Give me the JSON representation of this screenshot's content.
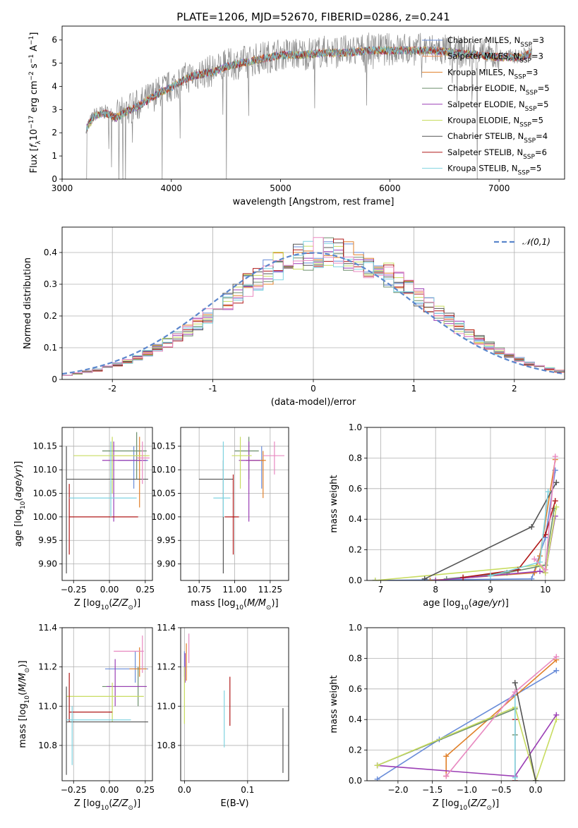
{
  "figure": {
    "title": "PLATE=1206, MJD=52670, FIBERID=0286, z=0.241"
  },
  "colors": {
    "blue": "#6a8dd9",
    "orange": "#e0802a",
    "salmon": "#e8854f",
    "green": "#6b8e6b",
    "purple": "#9b3fb5",
    "lime": "#c8dc60",
    "dark": "#555555",
    "red": "#b01818",
    "cyan": "#7fd3e0",
    "pink": "#e889c0",
    "gray": "#888888",
    "olive": "#9cbf2f"
  },
  "chart_data": [
    {
      "id": "spectrum",
      "type": "line",
      "title": "PLATE=1206, MJD=52670, FIBERID=0286, z=0.241",
      "xlabel": "wavelength [Angstrom, rest frame]",
      "ylabel": "Flux [f_λ 10^-17 erg cm^-2 s^-1 A^-1]",
      "xlim": [
        3000,
        7600
      ],
      "ylim": [
        0,
        6.6
      ],
      "xticks": [
        3000,
        4000,
        5000,
        6000,
        7000
      ],
      "yticks": [
        0,
        1,
        2,
        3,
        4,
        5,
        6
      ],
      "data_color": "#888888",
      "data_x": [
        3220,
        3300,
        3400,
        3500,
        3600,
        3700,
        3800,
        3900,
        4000,
        4100,
        4200,
        4300,
        4400,
        4500,
        4600,
        4700,
        4800,
        4900,
        5000,
        5200,
        5400,
        5600,
        5800,
        6000,
        6200,
        6400,
        6600,
        6800,
        7000,
        7200,
        7300
      ],
      "data_y": [
        2.2,
        2.8,
        2.9,
        2.7,
        3.0,
        3.2,
        3.5,
        3.8,
        4.0,
        4.3,
        4.5,
        4.6,
        4.7,
        4.9,
        5.0,
        5.1,
        5.2,
        5.3,
        5.4,
        5.4,
        5.5,
        5.5,
        5.6,
        5.6,
        5.6,
        5.6,
        5.5,
        5.4,
        5.3,
        5.3,
        5.5
      ],
      "legend_position": "upper-right",
      "series": [
        {
          "name": "Chabrier MILES, N",
          "sub": "SSP",
          "suffix": "=3",
          "color": "#6a8dd9"
        },
        {
          "name": "Salpeter MILES, N",
          "sub": "SSP",
          "suffix": "=3",
          "color": "#e8854f"
        },
        {
          "name": "Kroupa MILES, N",
          "sub": "SSP",
          "suffix": "=3",
          "color": "#e0802a"
        },
        {
          "name": "Chabrier ELODIE, N",
          "sub": "SSP",
          "suffix": "=5",
          "color": "#6b8e6b"
        },
        {
          "name": "Salpeter ELODIE, N",
          "sub": "SSP",
          "suffix": "=5",
          "color": "#9b3fb5"
        },
        {
          "name": "Kroupa ELODIE, N",
          "sub": "SSP",
          "suffix": "=5",
          "color": "#c8dc60"
        },
        {
          "name": "Chabrier STELIB, N",
          "sub": "SSP",
          "suffix": "=4",
          "color": "#555555"
        },
        {
          "name": "Salpeter STELIB, N",
          "sub": "SSP",
          "suffix": "=6",
          "color": "#b01818"
        },
        {
          "name": "Kroupa STELIB, N",
          "sub": "SSP",
          "suffix": "=5",
          "color": "#7fd3e0"
        }
      ]
    },
    {
      "id": "residuals",
      "type": "histogram",
      "xlabel": "(data-model)/error",
      "ylabel": "Normed distribution",
      "xlim": [
        -2.5,
        2.5
      ],
      "ylim": [
        0,
        0.48
      ],
      "xticks": [
        -2,
        -1,
        0,
        1,
        2
      ],
      "yticks": [
        0.0,
        0.1,
        0.2,
        0.3,
        0.4
      ],
      "grid": true,
      "reference": {
        "name": "𝒩(0,1)",
        "color": "#5b86cc",
        "mean": 0,
        "sigma": 1
      },
      "bin_width": 0.1,
      "series_colors": [
        "#6a8dd9",
        "#e0802a",
        "#6b8e6b",
        "#9b3fb5",
        "#c8dc60",
        "#555555",
        "#b01818",
        "#7fd3e0",
        "#e889c0"
      ]
    },
    {
      "id": "age_vs_Z",
      "type": "errorbar",
      "xlabel": "Z [log10(Z/Z⊙)]",
      "ylabel": "age [log10(age/yr)]",
      "xlim": [
        -0.33,
        0.3
      ],
      "ylim": [
        9.865,
        10.19
      ],
      "xticks": [
        -0.25,
        0.0,
        0.25
      ],
      "xticklabels": [
        "−0.25",
        "0.00",
        "0.25"
      ],
      "yticks": [
        9.9,
        9.95,
        10.0,
        10.05,
        10.1,
        10.15
      ],
      "yticklabels": [
        "9.90",
        "9.95",
        "10.00",
        "10.05",
        "10.10",
        "10.15"
      ],
      "points": [
        {
          "x": 0.17,
          "y": 10.12,
          "xl": 0.06,
          "xh": 0.27,
          "yl": 10.06,
          "yh": 10.15,
          "color": "#6a8dd9"
        },
        {
          "x": 0.21,
          "y": 10.13,
          "xl": 0.02,
          "xh": 0.27,
          "yl": 10.02,
          "yh": 10.17,
          "color": "#e0802a"
        },
        {
          "x": 0.19,
          "y": 10.14,
          "xl": -0.05,
          "xh": 0.26,
          "yl": 10.08,
          "yh": 10.18,
          "color": "#6b8e6b"
        },
        {
          "x": 0.03,
          "y": 10.12,
          "xl": -0.05,
          "xh": 0.26,
          "yl": 9.99,
          "yh": 10.16,
          "color": "#9b3fb5"
        },
        {
          "x": 0.02,
          "y": 10.13,
          "xl": -0.25,
          "xh": 0.28,
          "yl": 10.05,
          "yh": 10.17,
          "color": "#c8dc60"
        },
        {
          "x": -0.3,
          "y": 10.08,
          "xl": -0.3,
          "xh": 0.27,
          "yl": 9.88,
          "yh": 10.15,
          "color": "#555555"
        },
        {
          "x": -0.28,
          "y": 10.0,
          "xl": -0.28,
          "xh": 0.2,
          "yl": 9.92,
          "yh": 10.07,
          "color": "#b01818"
        },
        {
          "x": 0.01,
          "y": 10.04,
          "xl": -0.28,
          "xh": 0.19,
          "yl": 10.0,
          "yh": 10.16,
          "color": "#7fd3e0"
        },
        {
          "x": 0.23,
          "y": 10.125,
          "xl": 0.19,
          "xh": 0.28,
          "yl": 10.07,
          "yh": 10.16,
          "color": "#e889c0"
        }
      ]
    },
    {
      "id": "age_vs_mass",
      "type": "errorbar",
      "xlabel": "mass [log10(M/M⊙)]",
      "ylabel": "",
      "xlim": [
        10.62,
        11.38
      ],
      "ylim": [
        9.865,
        10.19
      ],
      "xticks": [
        10.75,
        11.0,
        11.25
      ],
      "xticklabels": [
        "10.75",
        "11.00",
        "11.25"
      ],
      "yticks": [
        9.9,
        9.95,
        10.0,
        10.05,
        10.1,
        10.15
      ],
      "yticklabels": [
        "9.90",
        "9.95",
        "10.00",
        "10.05",
        "10.10",
        "10.15"
      ],
      "points": [
        {
          "x": 11.19,
          "y": 10.12,
          "xl": 11.08,
          "xh": 11.2,
          "yl": 10.06,
          "yh": 10.15,
          "color": "#6a8dd9"
        },
        {
          "x": 11.2,
          "y": 10.12,
          "xl": 11.08,
          "xh": 11.22,
          "yl": 10.04,
          "yh": 10.14,
          "color": "#e0802a"
        },
        {
          "x": 11.1,
          "y": 10.14,
          "xl": 11.0,
          "xh": 11.17,
          "yl": 10.08,
          "yh": 10.17,
          "color": "#6b8e6b"
        },
        {
          "x": 11.1,
          "y": 10.12,
          "xl": 11.03,
          "xh": 11.18,
          "yl": 9.99,
          "yh": 10.16,
          "color": "#9b3fb5"
        },
        {
          "x": 11.04,
          "y": 10.13,
          "xl": 10.98,
          "xh": 11.12,
          "yl": 10.06,
          "yh": 10.17,
          "color": "#c8dc60"
        },
        {
          "x": 10.92,
          "y": 10.08,
          "xl": 10.75,
          "xh": 10.99,
          "yl": 9.88,
          "yh": 10.12,
          "color": "#555555"
        },
        {
          "x": 10.99,
          "y": 10.0,
          "xl": 10.93,
          "xh": 11.03,
          "yl": 9.92,
          "yh": 10.09,
          "color": "#b01818"
        },
        {
          "x": 10.92,
          "y": 10.04,
          "xl": 10.85,
          "xh": 10.97,
          "yl": 10.0,
          "yh": 10.16,
          "color": "#7fd3e0"
        },
        {
          "x": 11.28,
          "y": 10.13,
          "xl": 11.2,
          "xh": 11.35,
          "yl": 10.09,
          "yh": 10.16,
          "color": "#e889c0"
        }
      ]
    },
    {
      "id": "massweight_vs_age",
      "type": "line",
      "xlabel": "age [log10(age/yr)]",
      "ylabel": "mass weight",
      "xlim": [
        6.75,
        10.35
      ],
      "ylim": [
        0,
        1
      ],
      "xticks": [
        7,
        8,
        9,
        10
      ],
      "yticks": [
        0,
        0.2,
        0.4,
        0.6,
        0.8,
        1.0
      ],
      "yticklabels": [
        "0.0",
        "0.2",
        "0.4",
        "0.6",
        "0.8",
        "1.0"
      ],
      "grid": true,
      "series": [
        {
          "color": "#6a8dd9",
          "x": [
            6.9,
            9.75,
            10.0,
            10.18
          ],
          "y": [
            0.0,
            0.01,
            0.28,
            0.72
          ]
        },
        {
          "color": "#e0802a",
          "x": [
            7.9,
            9.8,
            9.9,
            10.18
          ],
          "y": [
            0.0,
            0.05,
            0.16,
            0.79
          ]
        },
        {
          "color": "#6b8e6b",
          "x": [
            8.2,
            9.3,
            10.0,
            10.16
          ],
          "y": [
            0.01,
            0.05,
            0.1,
            0.47
          ]
        },
        {
          "color": "#9b3fb5",
          "x": [
            8.0,
            9.9,
            10.0,
            10.18
          ],
          "y": [
            0.0,
            0.06,
            0.05,
            0.42
          ]
        },
        {
          "color": "#c8dc60",
          "x": [
            6.9,
            9.9,
            10.0,
            10.2
          ],
          "y": [
            0.0,
            0.1,
            0.05,
            0.48
          ]
        },
        {
          "color": "#555555",
          "x": [
            7.8,
            9.75,
            10.2
          ],
          "y": [
            0.01,
            0.35,
            0.64
          ]
        },
        {
          "color": "#b01818",
          "x": [
            8.5,
            9.5,
            10.0,
            10.18
          ],
          "y": [
            0.02,
            0.07,
            0.3,
            0.52
          ]
        },
        {
          "color": "#7fd3e0",
          "x": [
            9.0,
            9.9,
            10.05
          ],
          "y": [
            0.03,
            0.12,
            0.58
          ]
        },
        {
          "color": "#e889c0",
          "x": [
            9.8,
            10.0,
            10.18
          ],
          "y": [
            0.14,
            0.07,
            0.81
          ]
        }
      ]
    },
    {
      "id": "mass_vs_Z",
      "type": "errorbar",
      "xlabel": "Z [log10(Z/Z⊙)]",
      "ylabel": "mass [log10(M/M⊙)]",
      "xlim": [
        -0.33,
        0.3
      ],
      "ylim": [
        10.62,
        11.4
      ],
      "xticks": [
        -0.25,
        0.0,
        0.25
      ],
      "xticklabels": [
        "−0.25",
        "0.00",
        "0.25"
      ],
      "yticks": [
        10.8,
        11.0,
        11.2,
        11.4
      ],
      "yticklabels": [
        "10.8",
        "11.0",
        "11.2",
        "11.4"
      ],
      "points": [
        {
          "x": 0.18,
          "y": 11.19,
          "xl": -0.03,
          "xh": 0.27,
          "yl": 11.12,
          "yh": 11.28,
          "color": "#6a8dd9"
        },
        {
          "x": 0.21,
          "y": 11.19,
          "xl": 0.14,
          "xh": 0.26,
          "yl": 11.15,
          "yh": 11.3,
          "color": "#e0802a"
        },
        {
          "x": 0.2,
          "y": 11.1,
          "xl": -0.05,
          "xh": 0.26,
          "yl": 11.0,
          "yh": 11.2,
          "color": "#6b8e6b"
        },
        {
          "x": 0.04,
          "y": 11.1,
          "xl": -0.02,
          "xh": 0.26,
          "yl": 11.0,
          "yh": 11.24,
          "color": "#9b3fb5"
        },
        {
          "x": 0.02,
          "y": 11.05,
          "xl": -0.3,
          "xh": 0.24,
          "yl": 10.92,
          "yh": 11.12,
          "color": "#c8dc60"
        },
        {
          "x": -0.3,
          "y": 10.92,
          "xl": -0.3,
          "xh": 0.27,
          "yl": 10.65,
          "yh": 11.1,
          "color": "#555555"
        },
        {
          "x": -0.28,
          "y": 10.97,
          "xl": -0.28,
          "xh": 0.02,
          "yl": 10.92,
          "yh": 11.17,
          "color": "#b01818"
        },
        {
          "x": -0.26,
          "y": 10.93,
          "xl": -0.3,
          "xh": 0.15,
          "yl": 10.7,
          "yh": 11.0,
          "color": "#7fd3e0"
        },
        {
          "x": 0.23,
          "y": 11.28,
          "xl": 0.03,
          "xh": 0.24,
          "yl": 11.17,
          "yh": 11.36,
          "color": "#e889c0"
        }
      ]
    },
    {
      "id": "mass_vs_EBV",
      "type": "errorbar",
      "xlabel": "E(B-V)",
      "ylabel": "",
      "xlim": [
        -0.006,
        0.165
      ],
      "ylim": [
        10.62,
        11.4
      ],
      "xticks": [
        0.0,
        0.1
      ],
      "xticklabels": [
        "0.0",
        "0.1"
      ],
      "yticks": [
        10.8,
        11.0,
        11.2,
        11.4
      ],
      "yticklabels": [
        "10.8",
        "11.0",
        "11.2",
        "11.4"
      ],
      "points": [
        {
          "x": 0.0,
          "y": 11.23,
          "yl": 11.15,
          "yh": 11.28,
          "color": "#6a8dd9"
        },
        {
          "x": 0.003,
          "y": 11.23,
          "yl": 11.13,
          "yh": 11.32,
          "color": "#e0802a"
        },
        {
          "x": 0.001,
          "y": 11.2,
          "yl": 11.12,
          "yh": 11.27,
          "color": "#9b3fb5"
        },
        {
          "x": 0.0,
          "y": 11.05,
          "yl": 10.91,
          "yh": 11.2,
          "color": "#c8dc60"
        },
        {
          "x": 0.007,
          "y": 11.3,
          "yl": 11.22,
          "yh": 11.37,
          "color": "#e889c0"
        },
        {
          "x": 0.072,
          "y": 11.0,
          "yl": 10.9,
          "yh": 11.15,
          "color": "#b01818"
        },
        {
          "x": 0.063,
          "y": 10.93,
          "yl": 10.79,
          "yh": 11.08,
          "color": "#7fd3e0"
        },
        {
          "x": 0.156,
          "y": 10.84,
          "yl": 10.66,
          "yh": 10.99,
          "color": "#555555"
        }
      ]
    },
    {
      "id": "massweight_vs_Z",
      "type": "line",
      "xlabel": "Z [log10(Z/Z⊙)]",
      "ylabel": "mass weight",
      "xlim": [
        -2.45,
        0.42
      ],
      "ylim": [
        0,
        1
      ],
      "xticks": [
        -2.0,
        -1.5,
        -1.0,
        -0.5,
        0.0
      ],
      "xticklabels": [
        "−2.0",
        "−1.5",
        "−1.0",
        "−0.5",
        "0.0"
      ],
      "yticks": [
        0,
        0.2,
        0.4,
        0.6,
        0.8,
        1.0
      ],
      "yticklabels": [
        "0.0",
        "0.2",
        "0.4",
        "0.6",
        "0.8",
        "1.0"
      ],
      "grid": true,
      "series": [
        {
          "color": "#6a8dd9",
          "x": [
            -2.3,
            -1.4,
            -0.3,
            0.3
          ],
          "y": [
            0.01,
            0.27,
            0.56,
            0.72
          ]
        },
        {
          "color": "#e0802a",
          "x": [
            -1.3,
            -1.3,
            0.3
          ],
          "y": [
            0.03,
            0.16,
            0.79
          ]
        },
        {
          "color": "#6b8e6b",
          "x": [
            -2.3,
            -0.3,
            -0.3
          ],
          "y": [
            0.1,
            0.47,
            0.3
          ]
        },
        {
          "color": "#9b3fb5",
          "x": [
            -2.3,
            -0.3,
            0.3
          ],
          "y": [
            0.1,
            0.03,
            0.43
          ]
        },
        {
          "color": "#c8dc60",
          "x": [
            -2.3,
            -0.3,
            0.0,
            0.3
          ],
          "y": [
            0.1,
            0.48,
            0.0,
            0.4
          ]
        },
        {
          "color": "#555555",
          "x": [
            -0.3,
            0.0
          ],
          "y": [
            0.64,
            0.0
          ]
        },
        {
          "color": "#b01818",
          "x": [
            -0.3,
            -0.3
          ],
          "y": [
            0.4,
            0.0
          ]
        },
        {
          "color": "#7fd3e0",
          "x": [
            -0.3,
            -0.3
          ],
          "y": [
            0.58,
            0.02
          ]
        },
        {
          "color": "#e889c0",
          "x": [
            -1.3,
            -0.3,
            0.3
          ],
          "y": [
            0.03,
            0.58,
            0.81
          ]
        }
      ]
    }
  ]
}
